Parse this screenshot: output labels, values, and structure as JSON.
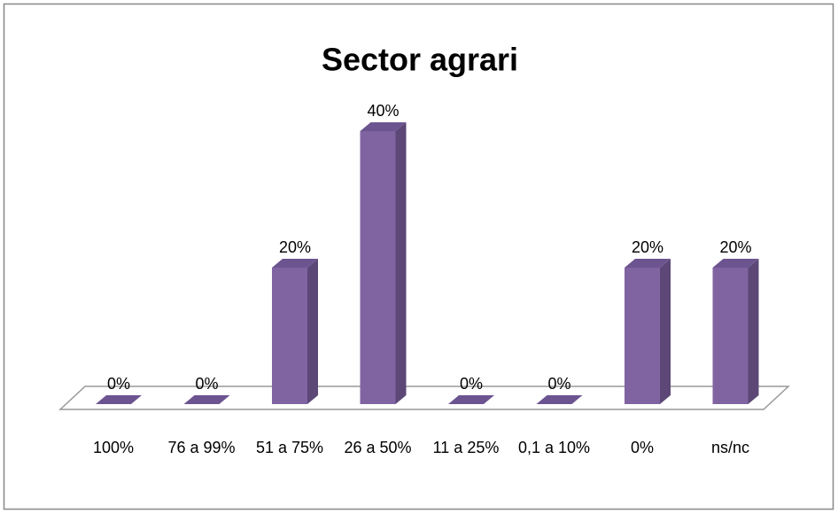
{
  "chart_data": {
    "type": "bar3d",
    "title": "Sector agrari",
    "categories": [
      "100%",
      "76 a 99%",
      "51 a 75%",
      "26 a 50%",
      "11 a 25%",
      "0,1 a 10%",
      "0%",
      "ns/nc"
    ],
    "values": [
      0,
      0,
      20,
      40,
      0,
      0,
      20,
      20
    ],
    "value_labels": [
      "0%",
      "0%",
      "20%",
      "40%",
      "0%",
      "0%",
      "20%",
      "20%"
    ],
    "color": "#8064a2"
  }
}
